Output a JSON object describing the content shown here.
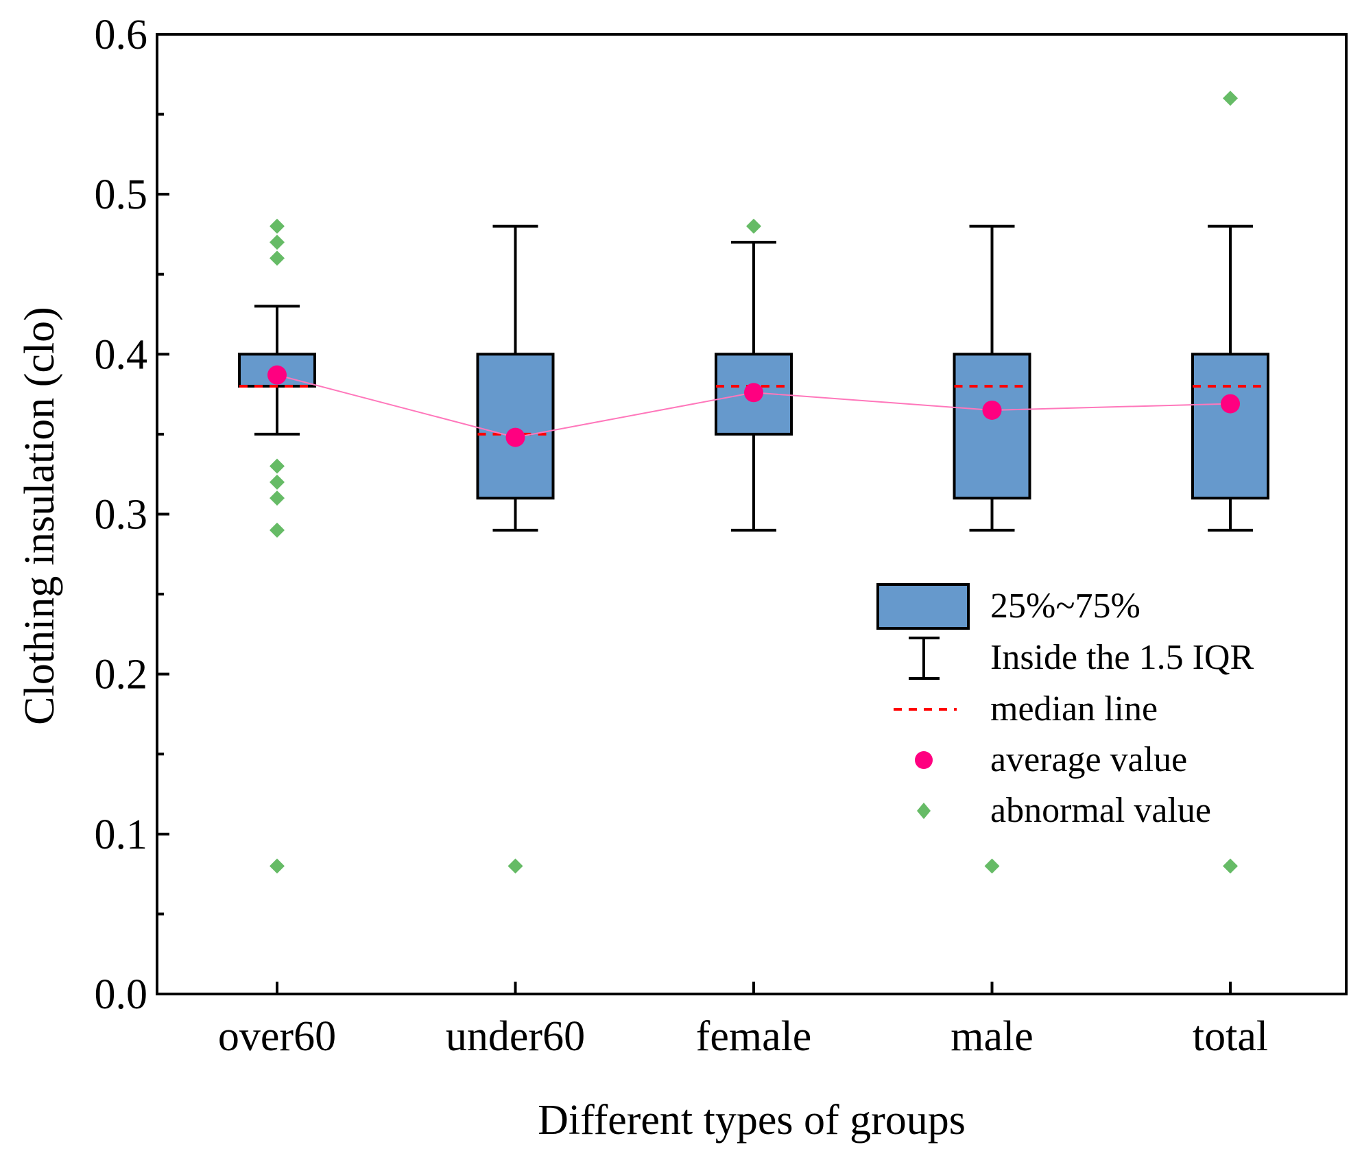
{
  "chart_data": {
    "type": "box",
    "xlabel": "Different types of groups",
    "ylabel": "Clothing insulation (clo)",
    "ylim": [
      0.0,
      0.6
    ],
    "yticks": [
      "0.0",
      "0.1",
      "0.2",
      "0.3",
      "0.4",
      "0.5",
      "0.6"
    ],
    "yticks_values": [
      0.0,
      0.1,
      0.2,
      0.3,
      0.4,
      0.5,
      0.6
    ],
    "categories": [
      "over60",
      "under60",
      "female",
      "male",
      "total"
    ],
    "boxes": [
      {
        "q1": 0.38,
        "q3": 0.4,
        "median": 0.38,
        "mean": 0.387,
        "whisker_low": 0.35,
        "whisker_high": 0.43,
        "outliers": [
          0.48,
          0.47,
          0.46,
          0.33,
          0.32,
          0.31,
          0.29,
          0.08
        ]
      },
      {
        "q1": 0.31,
        "q3": 0.4,
        "median": 0.35,
        "mean": 0.348,
        "whisker_low": 0.29,
        "whisker_high": 0.48,
        "outliers": [
          0.08
        ]
      },
      {
        "q1": 0.35,
        "q3": 0.4,
        "median": 0.38,
        "mean": 0.376,
        "whisker_low": 0.29,
        "whisker_high": 0.47,
        "outliers": [
          0.48
        ]
      },
      {
        "q1": 0.31,
        "q3": 0.4,
        "median": 0.38,
        "mean": 0.365,
        "whisker_low": 0.29,
        "whisker_high": 0.48,
        "outliers": [
          0.08
        ]
      },
      {
        "q1": 0.31,
        "q3": 0.4,
        "median": 0.38,
        "mean": 0.369,
        "whisker_low": 0.29,
        "whisker_high": 0.48,
        "outliers": [
          0.56,
          0.08
        ]
      }
    ],
    "legend": {
      "position": "center-right",
      "items": [
        "25%~75%",
        "Inside the 1.5 IQR",
        "median line",
        "average value",
        "abnormal value"
      ]
    },
    "colors": {
      "box_fill": "#6699cc",
      "median": "#ff0000",
      "mean": "#ff0080",
      "mean_line": "#ff77bb",
      "outlier": "#66bb66"
    }
  }
}
